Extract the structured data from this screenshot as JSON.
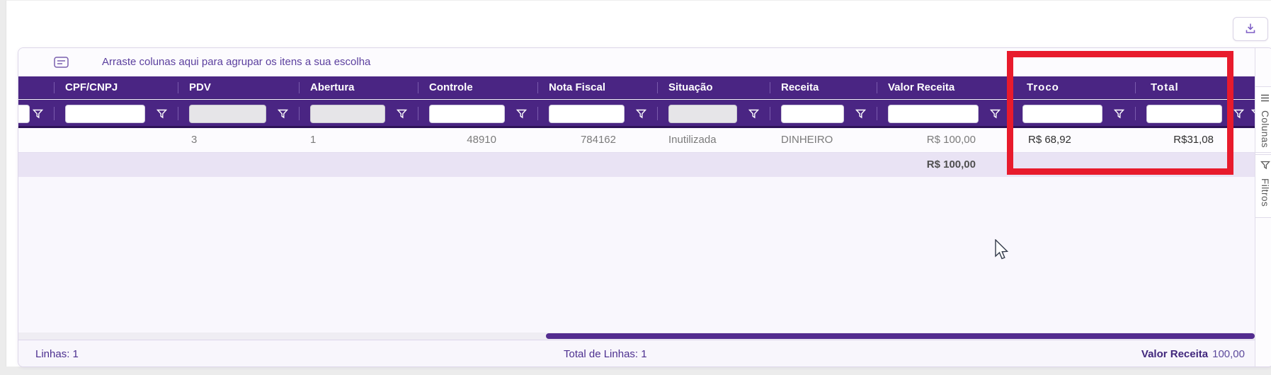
{
  "toolbar": {
    "export_icon": "download-icon"
  },
  "grid": {
    "group_panel_text": "Arraste colunas aqui para agrupar os itens a sua escolha",
    "columns": [
      {
        "key": "blank",
        "label": "",
        "filter": "enabled",
        "align": "left",
        "partial": true
      },
      {
        "key": "cpf_cnpj",
        "label": "CPF/CNPJ",
        "filter": "enabled",
        "align": "left"
      },
      {
        "key": "pdv",
        "label": "PDV",
        "filter": "disabled",
        "align": "left"
      },
      {
        "key": "abertura",
        "label": "Abertura",
        "filter": "disabled",
        "align": "left"
      },
      {
        "key": "controle",
        "label": "Controle",
        "filter": "enabled",
        "align": "right"
      },
      {
        "key": "nota_fiscal",
        "label": "Nota Fiscal",
        "filter": "enabled",
        "align": "right"
      },
      {
        "key": "situacao",
        "label": "Situação",
        "filter": "disabled",
        "align": "left"
      },
      {
        "key": "receita",
        "label": "Receita",
        "filter": "enabled",
        "align": "left"
      },
      {
        "key": "valor_receita",
        "label": "Valor Receita",
        "filter": "enabled",
        "align": "right"
      },
      {
        "key": "troco",
        "label": "Troco",
        "filter": "enabled",
        "align": "left",
        "highlighted": true
      },
      {
        "key": "total",
        "label": "Total",
        "filter": "enabled",
        "align": "right",
        "highlighted": true
      }
    ],
    "rows": [
      {
        "blank": "",
        "cpf_cnpj": "",
        "pdv": "3",
        "abertura": "1",
        "controle": "48910",
        "nota_fiscal": "784162",
        "situacao": "Inutilizada",
        "receita": "DINHEIRO",
        "valor_receita": "R$ 100,00",
        "troco": "R$ 68,92",
        "total": "R$31,08"
      }
    ],
    "summary_row": {
      "valor_receita": "R$ 100,00"
    },
    "filter_values": {
      "all": ""
    }
  },
  "side_tabs": [
    {
      "label": "Colunas",
      "icon": "column-chooser-icon"
    },
    {
      "label": "Filtros",
      "icon": "filter-funnel-icon"
    }
  ],
  "footer": {
    "rows_label": "Linhas: 1",
    "total_rows_label": "Total de Linhas: 1",
    "summary_label": "Valor Receita",
    "summary_value": "100,00"
  },
  "annotation": {
    "shape": "rectangle",
    "color": "#e81b2c",
    "highlights": [
      "Troco",
      "Total"
    ]
  },
  "colors": {
    "header_purple": "#4a2583",
    "accent_purple": "#5b3f9e",
    "scrollbar_thumb": "#532c8f",
    "annotation_red": "#e81b2c"
  }
}
